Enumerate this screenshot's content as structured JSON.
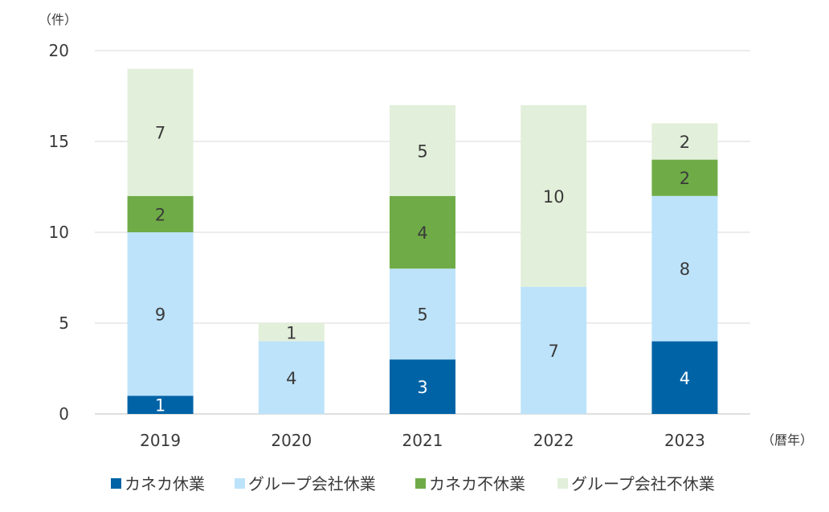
{
  "chart_data": {
    "type": "bar",
    "stacked": true,
    "y_unit_label": "（件）",
    "x_unit_label": "（暦年）",
    "categories": [
      "2019",
      "2020",
      "2021",
      "2022",
      "2023"
    ],
    "ylim": [
      0,
      20
    ],
    "yticks": [
      0,
      5,
      10,
      15,
      20
    ],
    "grid": true,
    "legend_position": "bottom",
    "series": [
      {
        "name": "カネカ休業",
        "color": "#0063A6",
        "label_color": "#ffffff",
        "values": [
          1,
          0,
          3,
          0,
          4
        ]
      },
      {
        "name": "グループ会社休業",
        "color": "#BDE3FA",
        "label_color": "#3a3a3a",
        "values": [
          9,
          4,
          5,
          7,
          8
        ]
      },
      {
        "name": "カネカ不休業",
        "color": "#6FAC47",
        "label_color": "#3a3a3a",
        "values": [
          2,
          0,
          4,
          0,
          2
        ]
      },
      {
        "name": "グループ会社不休業",
        "color": "#E2EFDA",
        "label_color": "#3a3a3a",
        "values": [
          7,
          1,
          5,
          10,
          2
        ]
      }
    ]
  }
}
